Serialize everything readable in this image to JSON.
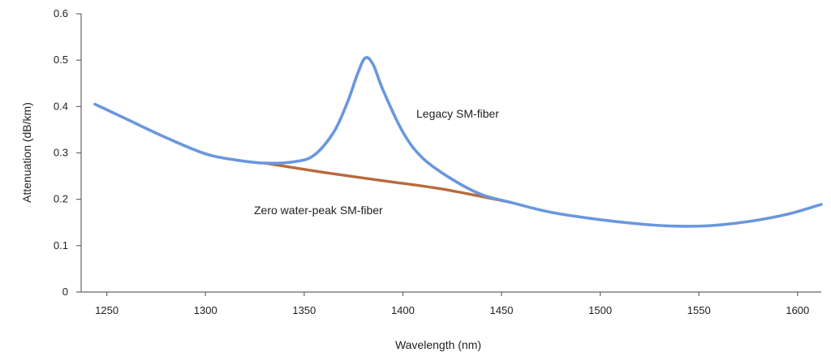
{
  "chart_data": {
    "type": "line",
    "title": "",
    "xlabel": "Wavelength (nm)",
    "ylabel": "Attenuation (dB/km)",
    "xlim": [
      1237,
      1612
    ],
    "ylim": [
      0,
      0.6
    ],
    "x_ticks": [
      1250,
      1300,
      1350,
      1400,
      1450,
      1500,
      1550,
      1600
    ],
    "y_ticks": [
      0,
      0.1,
      0.2,
      0.3,
      0.4,
      0.5,
      0.6
    ],
    "x_tick_labels": [
      "1250",
      "1300",
      "1350",
      "1400",
      "1450",
      "1500",
      "1550",
      "1600"
    ],
    "y_tick_labels": [
      "0",
      "0.1",
      "0.2",
      "0.3",
      "0.4",
      "0.5",
      "0.6"
    ],
    "grid": false,
    "legend": "none",
    "series": [
      {
        "name": "Legacy SM-fiber",
        "color": "#6a97de",
        "x": [
          1244,
          1260,
          1280,
          1300,
          1315,
          1330,
          1345,
          1355,
          1365,
          1372,
          1377,
          1381,
          1385,
          1390,
          1400,
          1410,
          1425,
          1440,
          1455,
          1475,
          1500,
          1525,
          1540,
          1555,
          1575,
          1595,
          1612
        ],
        "y": [
          0.405,
          0.373,
          0.333,
          0.298,
          0.285,
          0.278,
          0.281,
          0.295,
          0.345,
          0.41,
          0.47,
          0.505,
          0.49,
          0.435,
          0.345,
          0.289,
          0.243,
          0.21,
          0.193,
          0.172,
          0.156,
          0.145,
          0.142,
          0.143,
          0.152,
          0.168,
          0.189
        ]
      },
      {
        "name": "Zero water-peak SM-fiber",
        "color": "#b86a3d",
        "x": [
          1330,
          1360,
          1390,
          1420,
          1455
        ],
        "y": [
          0.278,
          0.258,
          0.24,
          0.222,
          0.193
        ]
      }
    ],
    "annotations": [
      {
        "text": "Legacy SM-fiber",
        "x": 1407,
        "y": 0.4
      },
      {
        "text": "Zero water-peak SM-fiber",
        "x": 1327,
        "y": 0.17
      }
    ]
  }
}
